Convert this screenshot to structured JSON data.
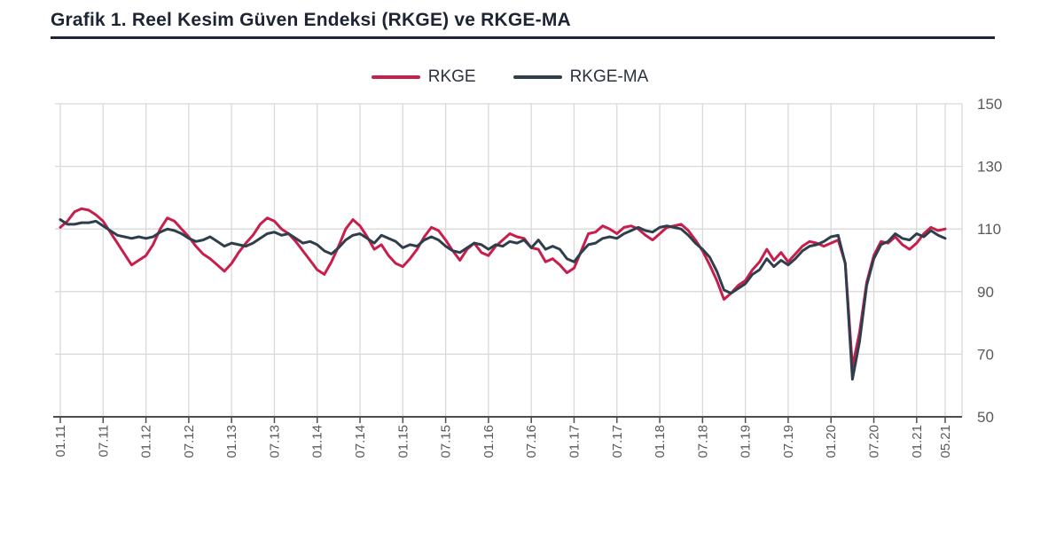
{
  "page": {
    "title": "Grafik 1. Reel Kesim Güven Endeksi (RKGE) ve RKGE-MA"
  },
  "legend": {
    "items": [
      {
        "label": "RKGE",
        "color": "#c81e4b"
      },
      {
        "label": "RKGE-MA",
        "color": "#2f3e4d"
      }
    ]
  },
  "colors": {
    "grid": "#d9d9d9",
    "axis": "#4d4d4d",
    "tick_label": "#595959",
    "title": "#1d2433",
    "background": "#ffffff"
  },
  "chart_data": {
    "type": "line",
    "title": "Grafik 1. Reel Kesim Güven Endeksi (RKGE) ve RKGE-MA",
    "xlabel": "",
    "ylabel": "",
    "x_start_month": "01.11",
    "x_end_month": "05.21",
    "months_total": 125,
    "x_tick_labels": [
      "01.11",
      "07.11",
      "01.12",
      "07.12",
      "01.13",
      "07.13",
      "01.14",
      "07.14",
      "01.15",
      "07.15",
      "01.16",
      "07.16",
      "01.17",
      "07.17",
      "01.18",
      "07.18",
      "01.19",
      "07.19",
      "01.20",
      "07.20",
      "01.21",
      "05.21"
    ],
    "x_tick_month_index": [
      0,
      6,
      12,
      18,
      24,
      30,
      36,
      42,
      48,
      54,
      60,
      66,
      72,
      78,
      84,
      90,
      96,
      102,
      108,
      114,
      120,
      124
    ],
    "y_ticks": [
      50,
      70,
      90,
      110,
      130,
      150
    ],
    "ylim": [
      50,
      150
    ],
    "grid": true,
    "legend_position": "top-center",
    "series": [
      {
        "name": "RKGE",
        "color": "#c81e4b",
        "values": [
          110.5,
          112.5,
          115.5,
          116.5,
          116.0,
          114.5,
          112.5,
          109.0,
          105.5,
          102.0,
          98.5,
          100.0,
          101.5,
          105.0,
          110.0,
          113.5,
          112.5,
          110.0,
          107.5,
          104.5,
          102.0,
          100.5,
          98.5,
          96.5,
          99.0,
          102.5,
          105.5,
          108.0,
          111.5,
          113.5,
          112.5,
          110.0,
          108.5,
          106.0,
          103.0,
          100.0,
          97.0,
          95.5,
          99.5,
          104.5,
          110.0,
          113.0,
          111.0,
          107.5,
          103.5,
          105.0,
          101.5,
          99.0,
          98.0,
          100.5,
          103.5,
          107.5,
          110.5,
          109.5,
          106.5,
          103.0,
          100.0,
          103.5,
          105.5,
          102.5,
          101.5,
          104.5,
          106.5,
          108.5,
          107.5,
          107.0,
          104.0,
          103.5,
          99.5,
          100.5,
          98.5,
          96.0,
          97.5,
          103.0,
          108.5,
          109.0,
          111.0,
          110.0,
          108.5,
          110.5,
          111.0,
          110.0,
          108.0,
          106.5,
          108.5,
          110.5,
          111.0,
          111.5,
          109.5,
          106.5,
          103.0,
          98.5,
          93.5,
          87.5,
          89.5,
          92.0,
          93.5,
          97.0,
          99.5,
          103.5,
          100.0,
          102.5,
          99.5,
          102.0,
          104.5,
          106.0,
          105.5,
          104.5,
          105.5,
          106.5,
          99.0,
          66.0,
          77.0,
          93.0,
          101.5,
          106.0,
          105.5,
          107.5,
          105.0,
          103.5,
          105.5,
          108.5,
          110.5,
          109.5,
          110.0
        ]
      },
      {
        "name": "RKGE-MA",
        "color": "#2f3e4d",
        "values": [
          113.0,
          111.5,
          111.5,
          112.0,
          112.0,
          112.5,
          111.0,
          109.5,
          108.0,
          107.5,
          107.0,
          107.5,
          107.0,
          107.5,
          109.0,
          110.0,
          109.5,
          108.5,
          107.0,
          106.0,
          106.5,
          107.5,
          106.0,
          104.5,
          105.5,
          105.0,
          104.5,
          105.5,
          107.0,
          108.5,
          109.0,
          108.0,
          108.5,
          107.0,
          105.5,
          106.0,
          105.0,
          103.0,
          102.0,
          104.0,
          106.5,
          108.0,
          108.5,
          107.0,
          105.5,
          108.0,
          107.0,
          106.0,
          104.0,
          105.0,
          104.5,
          106.5,
          107.5,
          106.5,
          104.5,
          103.0,
          102.5,
          104.0,
          105.5,
          105.0,
          103.5,
          105.0,
          104.5,
          106.0,
          105.5,
          106.5,
          104.0,
          106.5,
          103.5,
          104.5,
          103.5,
          100.5,
          99.5,
          102.5,
          105.0,
          105.5,
          107.0,
          107.5,
          107.0,
          108.5,
          109.5,
          110.5,
          109.5,
          109.0,
          110.5,
          111.0,
          110.5,
          110.0,
          108.0,
          105.5,
          103.5,
          101.0,
          96.5,
          90.5,
          89.5,
          91.0,
          92.5,
          95.5,
          97.0,
          100.5,
          98.0,
          100.0,
          98.5,
          100.5,
          103.0,
          104.5,
          105.0,
          106.0,
          107.5,
          108.0,
          99.0,
          62.0,
          74.0,
          92.0,
          100.5,
          105.0,
          106.0,
          108.5,
          107.0,
          106.5,
          108.5,
          107.5,
          109.5,
          108.0,
          107.0
        ]
      }
    ]
  }
}
